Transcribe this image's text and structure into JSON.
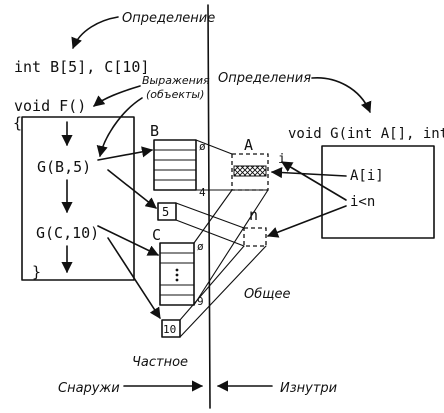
{
  "labels": {
    "definition_top": "Определение",
    "definitions_right": "Определения",
    "expressions_line1": "Выражения",
    "expressions_line2": "(объекты)",
    "decl_arrays": "int B[5], C[10]",
    "func_f": "void F()",
    "brace_open": "{",
    "brace_close": "}",
    "call_1": "G(B,5)",
    "call_2": "G(C,10)",
    "array_b": "B",
    "array_c": "C",
    "zero_b": "ø",
    "four": "4",
    "zero_c": "ø",
    "nine": "9",
    "value_5": "5",
    "value_10": "10",
    "param_a": "A",
    "index_i": "i",
    "param_n": "n",
    "func_g": "void G(int A[], int n)",
    "expr_ai": "A[i]",
    "expr_ilt": "i<n",
    "shared": "Общее",
    "private": "Частное",
    "outside": "Снаружи",
    "inside": "Изнутри"
  }
}
